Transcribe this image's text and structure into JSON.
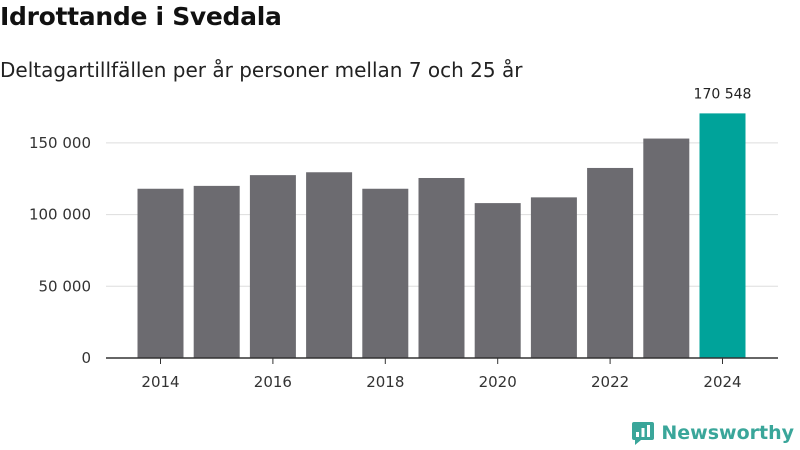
{
  "header": {
    "title": "Idrottande i Svedala",
    "subtitle": "Deltagartillfällen per år personer mellan 7 och 25 år"
  },
  "brand": {
    "name": "Newsworthy",
    "color": "#3aa69a"
  },
  "colors": {
    "bar": "#6c6b70",
    "highlight": "#00a39a",
    "grid": "#dddddd",
    "axis": "#333333"
  },
  "chart_data": {
    "type": "bar",
    "title": "Idrottande i Svedala",
    "subtitle": "Deltagartillfällen per år personer mellan 7 och 25 år",
    "xlabel": "",
    "ylabel": "",
    "categories": [
      "2014",
      "2015",
      "2016",
      "2017",
      "2018",
      "2019",
      "2020",
      "2021",
      "2022",
      "2023",
      "2024"
    ],
    "values": [
      118000,
      120000,
      127500,
      129500,
      118000,
      125500,
      108000,
      112000,
      132500,
      153000,
      170548
    ],
    "highlight_index": 10,
    "ylim": [
      0,
      175000
    ],
    "yticks": [
      0,
      50000,
      100000,
      150000
    ],
    "ytick_labels": [
      "0",
      "50 000",
      "100 000",
      "150 000"
    ],
    "xtick_labels": [
      {
        "index": 0,
        "label": "2014"
      },
      {
        "index": 2,
        "label": "2016"
      },
      {
        "index": 4,
        "label": "2018"
      },
      {
        "index": 6,
        "label": "2020"
      },
      {
        "index": 8,
        "label": "2022"
      },
      {
        "index": 10,
        "label": "2024"
      }
    ],
    "data_labels": [
      {
        "index": 10,
        "label": "170 548"
      }
    ],
    "grid": true
  }
}
